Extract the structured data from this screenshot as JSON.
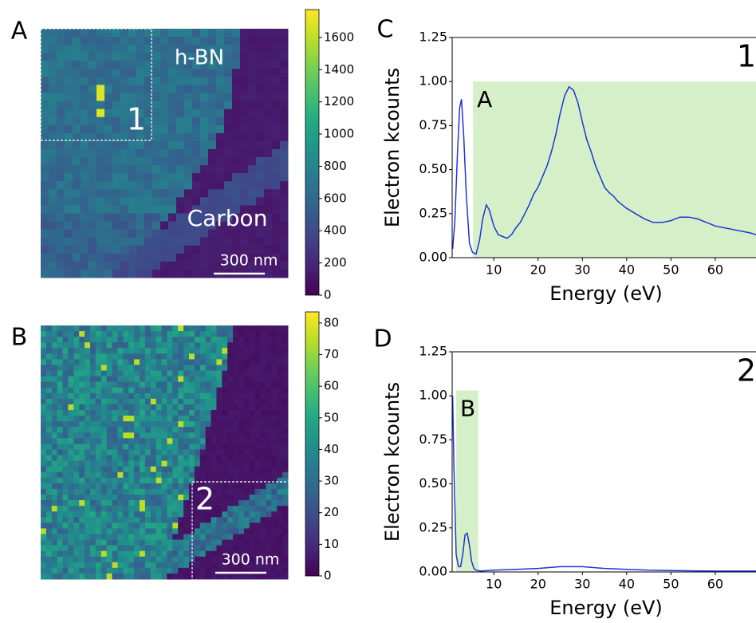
{
  "panel_labels": [
    "A",
    "B",
    "C",
    "D"
  ],
  "chart_data": [
    {
      "type": "map",
      "colorbar": {
        "lim": [
          0,
          1773
        ],
        "ticks": [
          0,
          200,
          400,
          600,
          800,
          1000,
          1200,
          1400,
          1600
        ]
      },
      "annotations": [
        "h-BN",
        "Carbon",
        "1"
      ],
      "scale_bar": "300 nm"
    },
    {
      "type": "map",
      "colorbar": {
        "lim": [
          0,
          83.5
        ],
        "ticks": [
          0,
          10,
          20,
          30,
          40,
          50,
          60,
          70,
          80
        ]
      },
      "annotations": [
        "2"
      ],
      "scale_bar": "300 nm"
    },
    {
      "type": "line",
      "xlabel": "Energy (eV)",
      "ylabel": "Electron kcounts",
      "xlim": [
        0.6,
        69.2
      ],
      "ylim": [
        0,
        1.25
      ],
      "xticks": [
        10,
        20,
        30,
        40,
        50,
        60
      ],
      "yticks": [
        {
          "value": 0,
          "label": "0.00"
        },
        {
          "value": 0.25,
          "label": "0.25"
        },
        {
          "value": 0.5,
          "label": "0.50"
        },
        {
          "value": 0.75,
          "label": "0.75"
        },
        {
          "value": 1,
          "label": "1.00"
        },
        {
          "value": 1.25,
          "label": "1.25"
        }
      ],
      "shaded": {
        "x": [
          5.3,
          69.2
        ],
        "y": [
          0,
          1.0
        ],
        "color": "#d5efc8",
        "label": "A"
      },
      "corner_label": "1",
      "series": [
        {
          "color": "#1f35d6",
          "x": [
            0.7,
            1.2,
            1.8,
            2.3,
            2.7,
            3.2,
            3.8,
            4.5,
            5.2,
            6,
            6.8,
            7.5,
            8.3,
            9,
            10,
            11,
            12,
            13,
            14,
            15,
            16,
            17,
            18,
            19,
            20,
            21,
            22,
            23,
            24,
            25,
            26,
            27,
            28,
            29,
            30,
            31,
            32,
            33,
            34,
            35,
            36,
            37,
            38,
            39,
            40,
            42,
            44,
            46,
            48,
            50,
            52,
            54,
            56,
            58,
            60,
            62,
            64,
            66,
            68,
            69.2
          ],
          "values": [
            0.05,
            0.2,
            0.6,
            0.85,
            0.9,
            0.7,
            0.35,
            0.08,
            0.03,
            0.02,
            0.1,
            0.22,
            0.3,
            0.27,
            0.18,
            0.13,
            0.12,
            0.11,
            0.13,
            0.17,
            0.2,
            0.25,
            0.3,
            0.36,
            0.4,
            0.46,
            0.52,
            0.6,
            0.7,
            0.82,
            0.92,
            0.97,
            0.95,
            0.88,
            0.77,
            0.67,
            0.6,
            0.52,
            0.46,
            0.4,
            0.37,
            0.35,
            0.32,
            0.3,
            0.28,
            0.25,
            0.22,
            0.2,
            0.2,
            0.21,
            0.23,
            0.23,
            0.22,
            0.2,
            0.18,
            0.17,
            0.16,
            0.15,
            0.14,
            0.13
          ]
        }
      ]
    },
    {
      "type": "line",
      "xlabel": "Energy (eV)",
      "ylabel": "Electron kcounts",
      "xlim": [
        0.6,
        69.2
      ],
      "ylim": [
        0,
        1.25
      ],
      "xticks": [
        10,
        20,
        30,
        40,
        50,
        60
      ],
      "yticks": [
        {
          "value": 0,
          "label": "0.00"
        },
        {
          "value": 0.25,
          "label": "0.25"
        },
        {
          "value": 0.5,
          "label": "0.50"
        },
        {
          "value": 0.75,
          "label": "0.75"
        },
        {
          "value": 1,
          "label": "1.00"
        },
        {
          "value": 1.25,
          "label": "1.25"
        }
      ],
      "shaded": {
        "x": [
          1.5,
          6.5
        ],
        "y": [
          0,
          1.03
        ],
        "color": "#d5efc8",
        "label": "B"
      },
      "corner_label": "2",
      "series": [
        {
          "color": "#1f35d6",
          "x": [
            0.7,
            1.0,
            1.5,
            2,
            2.5,
            3,
            3.5,
            4,
            4.5,
            5,
            5.5,
            6,
            7,
            10,
            15,
            20,
            25,
            30,
            35,
            40,
            45,
            50,
            60,
            69.2
          ],
          "values": [
            1.0,
            0.6,
            0.1,
            0.03,
            0.03,
            0.1,
            0.21,
            0.22,
            0.15,
            0.06,
            0.02,
            0.01,
            0.005,
            0.01,
            0.015,
            0.02,
            0.03,
            0.03,
            0.02,
            0.015,
            0.01,
            0.008,
            0.005,
            0.005
          ]
        }
      ]
    }
  ]
}
